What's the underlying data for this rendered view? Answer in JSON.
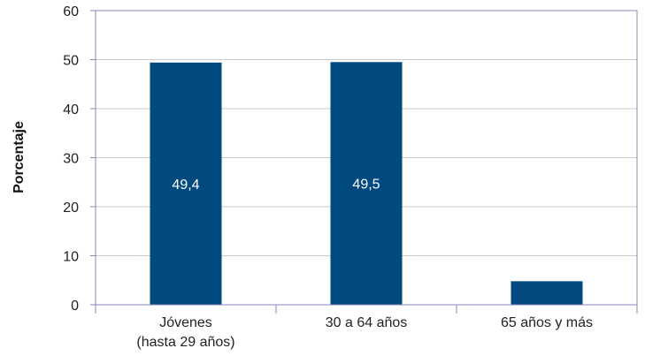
{
  "chart_data": {
    "type": "bar",
    "title": "",
    "xlabel": "",
    "ylabel": "Porcentaje",
    "categories": [
      [
        "Jóvenes",
        "(hasta 29 años)"
      ],
      [
        "30 a 64 años"
      ],
      [
        "65 años y más"
      ]
    ],
    "values": [
      49.4,
      49.5,
      4.8
    ],
    "data_labels": [
      "49,4",
      "49,5",
      ""
    ],
    "ylim": [
      0,
      60
    ],
    "yticks": [
      0,
      10,
      20,
      30,
      40,
      50,
      60
    ],
    "grid": true,
    "legend": "none",
    "colors": {
      "bar": "#004a80",
      "plot_border": "#8a84b8",
      "grid": "#c8c8c8"
    }
  }
}
